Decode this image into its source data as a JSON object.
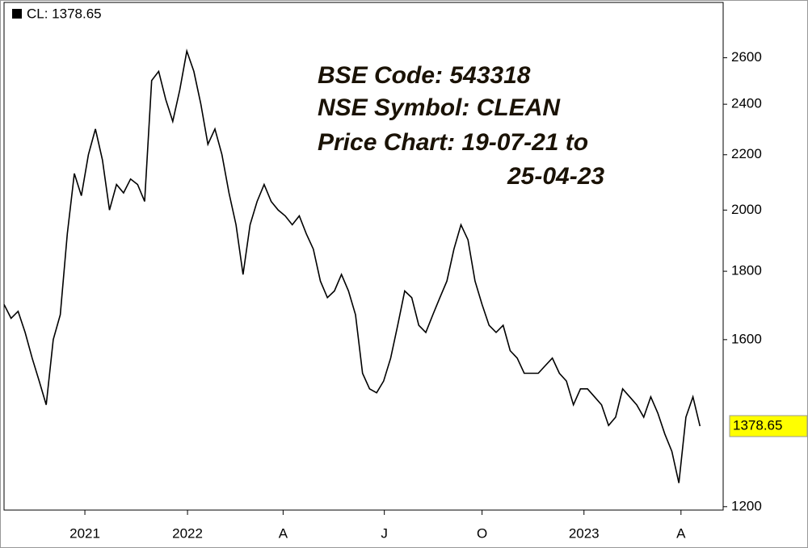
{
  "chart_data": {
    "type": "line",
    "legend": "CL: 1378.65",
    "annotations": [
      "BSE Code: 543318",
      "NSE Symbol: CLEAN",
      "Price Chart: 19-07-21 to",
      "25-04-23"
    ],
    "series": [
      {
        "name": "CL",
        "color": "#000000",
        "values": [
          1700,
          1660,
          1680,
          1620,
          1550,
          1490,
          1430,
          1600,
          1670,
          1920,
          2130,
          2050,
          2200,
          2300,
          2180,
          2000,
          2090,
          2060,
          2110,
          2090,
          2030,
          2500,
          2540,
          2420,
          2330,
          2460,
          2630,
          2540,
          2400,
          2240,
          2300,
          2200,
          2060,
          1950,
          1790,
          1950,
          2030,
          2090,
          2030,
          2000,
          1980,
          1950,
          1980,
          1920,
          1870,
          1770,
          1720,
          1740,
          1790,
          1740,
          1670,
          1510,
          1470,
          1460,
          1490,
          1550,
          1640,
          1740,
          1720,
          1640,
          1620,
          1670,
          1720,
          1770,
          1870,
          1950,
          1900,
          1770,
          1700,
          1640,
          1620,
          1640,
          1570,
          1550,
          1510,
          1510,
          1510,
          1530,
          1550,
          1510,
          1490,
          1430,
          1470,
          1470,
          1450,
          1430,
          1380,
          1400,
          1470,
          1450,
          1430,
          1400,
          1450,
          1410,
          1360,
          1320,
          1250,
          1400,
          1450,
          1378.65
        ]
      }
    ],
    "xlim": [
      0,
      102.3
    ],
    "xticks": [
      {
        "value": 11.5,
        "label": "2021"
      },
      {
        "value": 26.1,
        "label": "2022"
      },
      {
        "value": 39.7,
        "label": "A"
      },
      {
        "value": 54.1,
        "label": "J"
      },
      {
        "value": 68.0,
        "label": "O"
      },
      {
        "value": 82.5,
        "label": "2023"
      },
      {
        "value": 96.3,
        "label": "A"
      }
    ],
    "ylim": [
      1193,
      2860
    ],
    "yticks": [
      1200,
      1600,
      1800,
      2000,
      2200,
      2400,
      2600
    ],
    "log_scale": true,
    "grid": false,
    "last_value_color": "#ffff00"
  }
}
